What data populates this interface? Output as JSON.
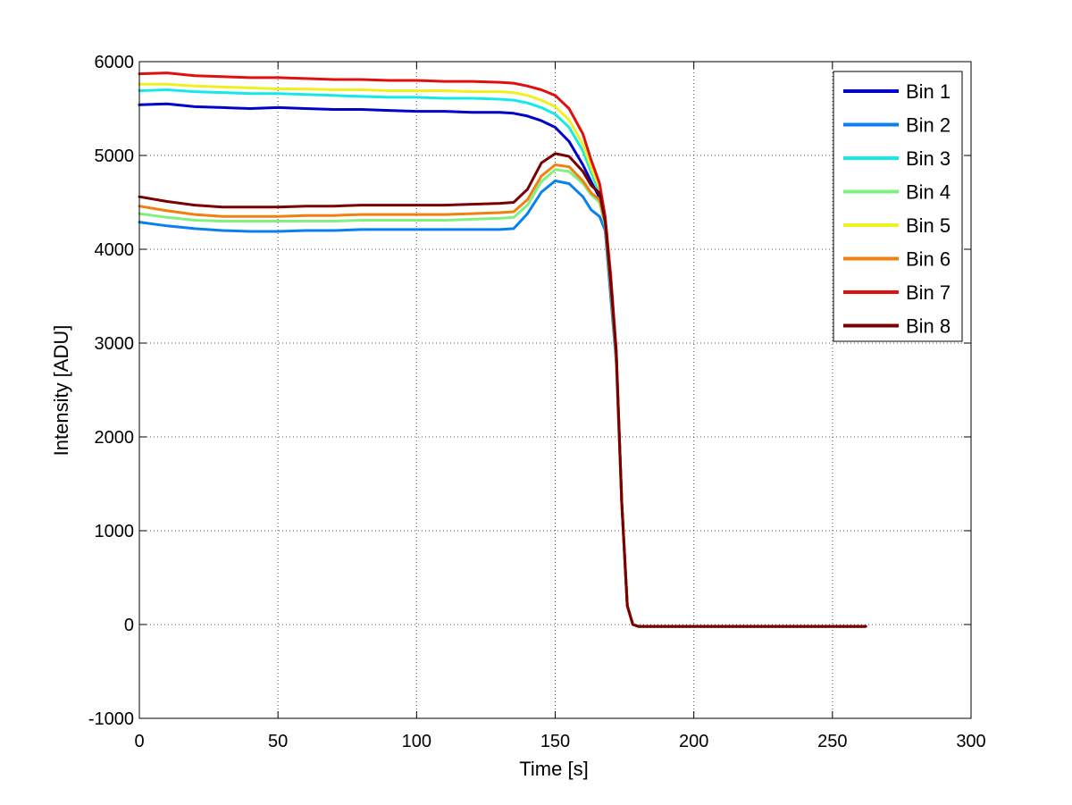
{
  "chart_data": {
    "type": "line",
    "xlabel": "Time [s]",
    "ylabel": "Intensity [ADU]",
    "xlim": [
      0,
      300
    ],
    "ylim": [
      -1000,
      6000
    ],
    "xticks": [
      0,
      50,
      100,
      150,
      200,
      250,
      300
    ],
    "yticks": [
      -1000,
      0,
      1000,
      2000,
      3000,
      4000,
      5000,
      6000
    ],
    "grid": true,
    "legend_position": "top-right",
    "x": [
      0,
      10,
      20,
      30,
      40,
      50,
      60,
      70,
      80,
      90,
      100,
      110,
      120,
      130,
      135,
      140,
      145,
      150,
      155,
      160,
      163,
      166,
      168,
      170,
      172,
      174,
      176,
      178,
      180,
      190,
      200,
      210,
      220,
      230,
      240,
      250,
      262
    ],
    "series": [
      {
        "name": "Bin 1",
        "color": "#0000c8",
        "values": [
          5540,
          5550,
          5520,
          5510,
          5500,
          5510,
          5500,
          5490,
          5490,
          5480,
          5470,
          5470,
          5460,
          5460,
          5450,
          5420,
          5370,
          5300,
          5150,
          4900,
          4720,
          4550,
          4250,
          3700,
          2900,
          1300,
          200,
          0,
          -20,
          -20,
          -20,
          -20,
          -20,
          -20,
          -20,
          -20,
          -20
        ]
      },
      {
        "name": "Bin 2",
        "color": "#0a80f0",
        "values": [
          4290,
          4250,
          4220,
          4200,
          4190,
          4190,
          4200,
          4200,
          4210,
          4210,
          4210,
          4210,
          4210,
          4210,
          4220,
          4380,
          4610,
          4730,
          4700,
          4560,
          4420,
          4350,
          4200,
          3500,
          2800,
          1300,
          200,
          0,
          -20,
          -20,
          -20,
          -20,
          -20,
          -20,
          -20,
          -20,
          -20
        ]
      },
      {
        "name": "Bin 3",
        "color": "#16e8e8",
        "values": [
          5690,
          5700,
          5680,
          5670,
          5660,
          5660,
          5650,
          5640,
          5630,
          5620,
          5620,
          5610,
          5610,
          5600,
          5590,
          5560,
          5510,
          5440,
          5300,
          5050,
          4820,
          4600,
          4300,
          3700,
          2900,
          1300,
          200,
          0,
          -20,
          -20,
          -20,
          -20,
          -20,
          -20,
          -20,
          -20,
          -20
        ]
      },
      {
        "name": "Bin 4",
        "color": "#80f080",
        "values": [
          4380,
          4340,
          4310,
          4300,
          4300,
          4300,
          4300,
          4300,
          4310,
          4310,
          4310,
          4310,
          4320,
          4330,
          4340,
          4470,
          4720,
          4850,
          4830,
          4700,
          4580,
          4500,
          4250,
          3600,
          2850,
          1300,
          200,
          0,
          -20,
          -20,
          -20,
          -20,
          -20,
          -20,
          -20,
          -20,
          -20
        ]
      },
      {
        "name": "Bin 5",
        "color": "#f0f020",
        "values": [
          5760,
          5760,
          5740,
          5730,
          5720,
          5710,
          5710,
          5700,
          5700,
          5690,
          5690,
          5690,
          5680,
          5680,
          5670,
          5640,
          5590,
          5520,
          5380,
          5120,
          4870,
          4650,
          4330,
          3720,
          2920,
          1300,
          200,
          0,
          -20,
          -20,
          -20,
          -20,
          -20,
          -20,
          -20,
          -20,
          -20
        ]
      },
      {
        "name": "Bin 6",
        "color": "#f08010",
        "values": [
          4460,
          4410,
          4370,
          4350,
          4350,
          4350,
          4360,
          4360,
          4370,
          4370,
          4370,
          4370,
          4380,
          4390,
          4400,
          4530,
          4780,
          4900,
          4880,
          4730,
          4600,
          4530,
          4280,
          3620,
          2870,
          1300,
          200,
          0,
          -20,
          -20,
          -20,
          -20,
          -20,
          -20,
          -20,
          -20,
          -20
        ]
      },
      {
        "name": "Bin 7",
        "color": "#e01010",
        "values": [
          5870,
          5880,
          5850,
          5840,
          5830,
          5830,
          5820,
          5810,
          5810,
          5800,
          5800,
          5790,
          5790,
          5780,
          5770,
          5740,
          5700,
          5640,
          5500,
          5230,
          4950,
          4700,
          4350,
          3730,
          2930,
          1300,
          200,
          0,
          -20,
          -20,
          -20,
          -20,
          -20,
          -20,
          -20,
          -20,
          -20
        ]
      },
      {
        "name": "Bin 8",
        "color": "#780000",
        "values": [
          4560,
          4510,
          4470,
          4450,
          4450,
          4450,
          4460,
          4460,
          4470,
          4470,
          4470,
          4470,
          4480,
          4490,
          4500,
          4640,
          4920,
          5020,
          4990,
          4830,
          4680,
          4600,
          4300,
          3650,
          2900,
          1300,
          200,
          0,
          -20,
          -20,
          -20,
          -20,
          -20,
          -20,
          -20,
          -20,
          -20
        ]
      }
    ]
  }
}
